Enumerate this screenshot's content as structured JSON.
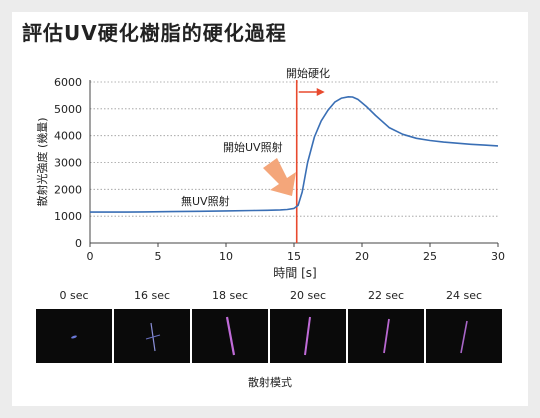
{
  "title": "評估UV硬化樹脂的硬化過程",
  "chart_data": {
    "type": "line",
    "xlabel": "時間 [s]",
    "ylabel": "散射光強度 (幾量)",
    "xlim": [
      0,
      30
    ],
    "ylim": [
      0,
      6000
    ],
    "xticks": [
      "0",
      "5",
      "10",
      "15",
      "20",
      "25",
      "30"
    ],
    "yticks": [
      "0",
      "1000",
      "2000",
      "3000",
      "4000",
      "5000",
      "6000"
    ],
    "grid": true,
    "line_color": "#3a6fb5",
    "series": [
      {
        "x": [
          0,
          2,
          4,
          6,
          8,
          10,
          12,
          13,
          14,
          14.5,
          15,
          15.3,
          15.6,
          16,
          16.5,
          17,
          17.5,
          18,
          18.5,
          19,
          19.3,
          19.7,
          20.3,
          21,
          22,
          23,
          24,
          25,
          26,
          27,
          28,
          29,
          30
        ],
        "y": [
          1150,
          1150,
          1160,
          1170,
          1180,
          1195,
          1210,
          1220,
          1235,
          1250,
          1290,
          1400,
          1900,
          3000,
          3950,
          4550,
          4950,
          5250,
          5400,
          5450,
          5440,
          5350,
          5100,
          4750,
          4300,
          4050,
          3900,
          3820,
          3760,
          3720,
          3680,
          3650,
          3620
        ]
      }
    ],
    "annotations": {
      "hardening_start": "開始硬化",
      "hardening_start_x": 15.2,
      "marker_color": "#e84a2e",
      "uv_on": "開始UV照射",
      "no_uv": "無UV照射",
      "arrow_color": "#f4a67a"
    }
  },
  "frames": [
    {
      "label": "0 sec"
    },
    {
      "label": "16 sec"
    },
    {
      "label": "18 sec"
    },
    {
      "label": "20 sec"
    },
    {
      "label": "22 sec"
    },
    {
      "label": "24 sec"
    }
  ],
  "frames_caption": "散射模式"
}
